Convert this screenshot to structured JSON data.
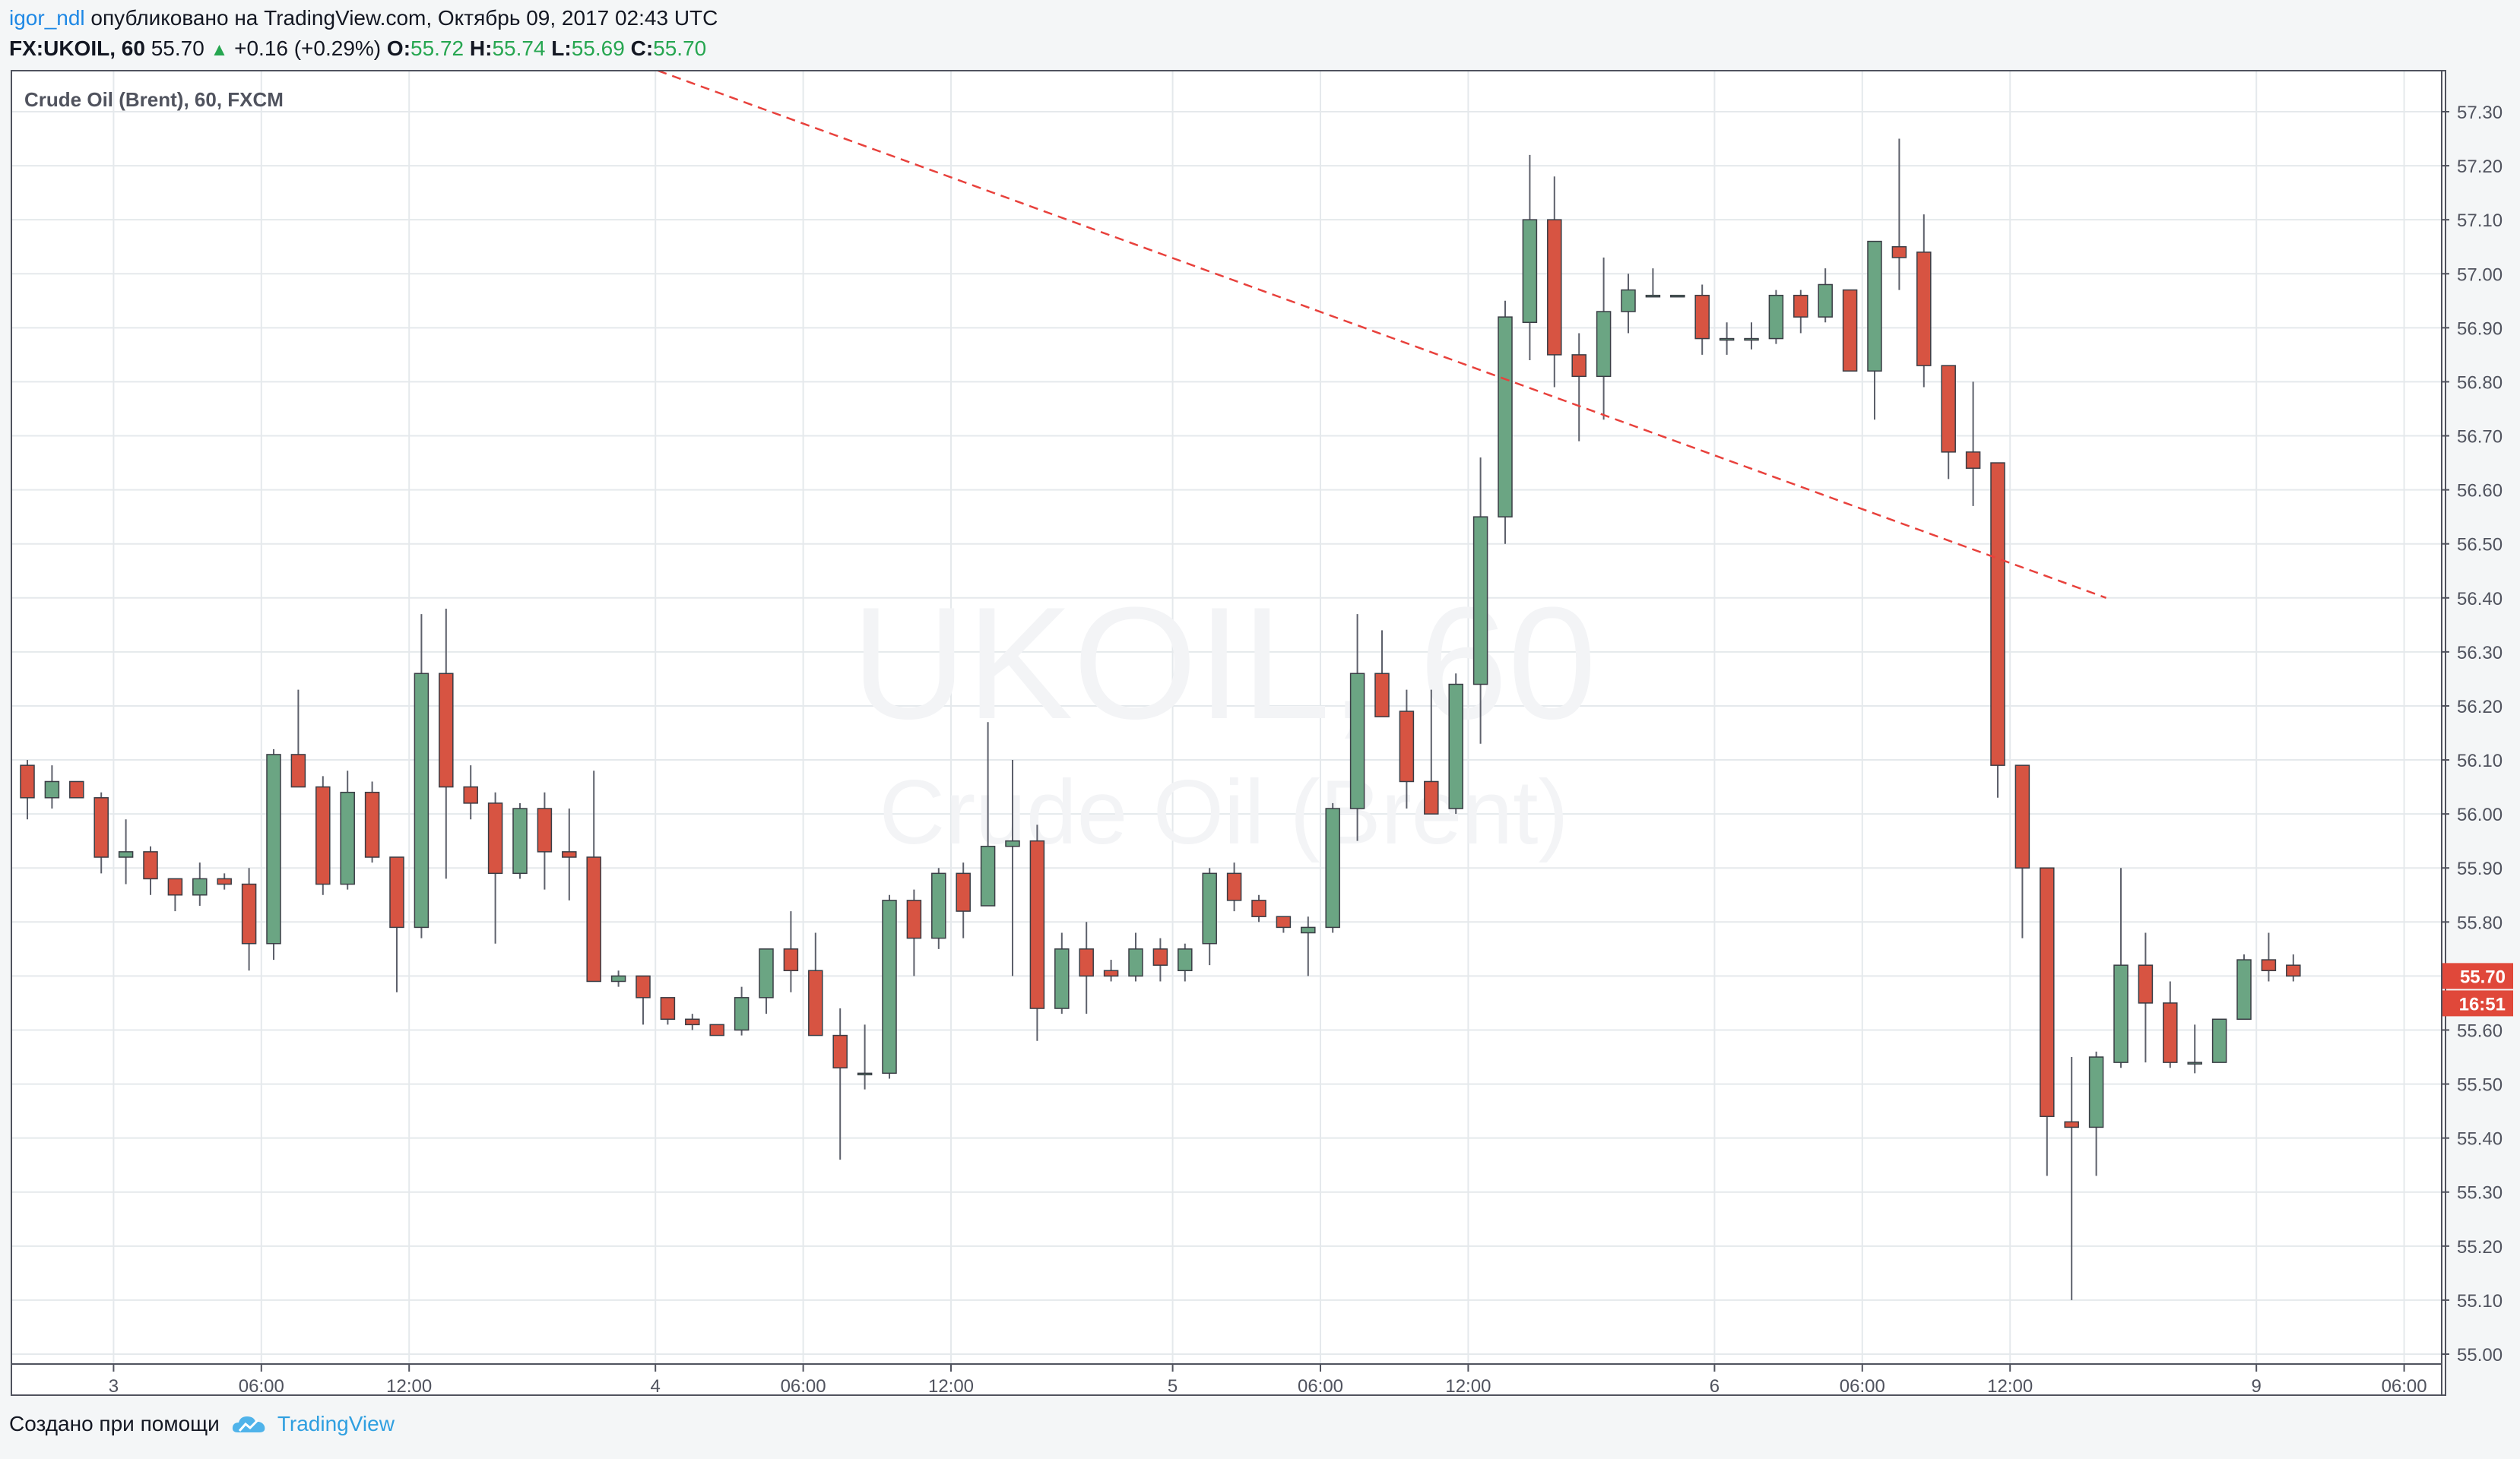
{
  "header": {
    "user": "igor_ndl",
    "published_text": "опубликовано на TradingView.com, Октябрь 09, 2017 02:43 UTC",
    "symbol": "FX:UKOIL, 60",
    "last": "55.70",
    "change": "+0.16 (+0.29%)",
    "o_label": "O:",
    "o_value": "55.72",
    "h_label": "H:",
    "h_value": "55.74",
    "l_label": "L:",
    "l_value": "55.69",
    "c_label": "C:",
    "c_value": "55.70"
  },
  "footer": {
    "created_with": "Создано при помощи",
    "brand": "TradingView"
  },
  "colors": {
    "up": "#6ba583",
    "down": "#d75442",
    "wick": "#5d606b",
    "trendline": "#e8413c",
    "grid": "#e5e9ec",
    "price_tag": "#e0483a"
  },
  "chart_data": {
    "type": "candlestick",
    "title": "Crude Oil (Brent), 60, FXCM",
    "watermark_symbol": "UKOIL, 60",
    "watermark_name": "Crude Oil (Brent)",
    "ylim": [
      55.0,
      57.3
    ],
    "y_ticks": [
      "57.30",
      "57.20",
      "57.10",
      "57.00",
      "56.90",
      "56.80",
      "56.70",
      "56.60",
      "56.50",
      "56.40",
      "56.30",
      "56.20",
      "56.10",
      "56.00",
      "55.90",
      "55.80",
      "55.70",
      "55.60",
      "55.50",
      "55.40",
      "55.30",
      "55.20",
      "55.10",
      "55.00"
    ],
    "x_ticks": [
      {
        "bar": 3.5,
        "label": "3"
      },
      {
        "bar": 9.5,
        "label": "06:00"
      },
      {
        "bar": 15.5,
        "label": "12:00"
      },
      {
        "bar": 25.5,
        "label": "4"
      },
      {
        "bar": 31.5,
        "label": "06:00"
      },
      {
        "bar": 37.5,
        "label": "12:00"
      },
      {
        "bar": 46.5,
        "label": "5"
      },
      {
        "bar": 52.5,
        "label": "06:00"
      },
      {
        "bar": 58.5,
        "label": "12:00"
      },
      {
        "bar": 68.5,
        "label": "6"
      },
      {
        "bar": 74.5,
        "label": "06:00"
      },
      {
        "bar": 80.5,
        "label": "12:00"
      },
      {
        "bar": 90.5,
        "label": "9"
      },
      {
        "bar": 96.5,
        "label": "06:00"
      }
    ],
    "last_price_label": "55.70",
    "countdown_label": "16:51",
    "last_price": 55.7,
    "trendline": {
      "from": {
        "bar": 25.6,
        "price": 57.38
      },
      "to": {
        "bar": 84.4,
        "price": 56.4
      }
    },
    "candles": [
      [
        56.09,
        56.1,
        55.99,
        56.03
      ],
      [
        56.03,
        56.09,
        56.01,
        56.06
      ],
      [
        56.06,
        56.06,
        56.03,
        56.03
      ],
      [
        56.03,
        56.04,
        55.89,
        55.92
      ],
      [
        55.92,
        55.99,
        55.87,
        55.93
      ],
      [
        55.93,
        55.94,
        55.85,
        55.88
      ],
      [
        55.88,
        55.88,
        55.82,
        55.85
      ],
      [
        55.85,
        55.91,
        55.83,
        55.88
      ],
      [
        55.88,
        55.89,
        55.86,
        55.87
      ],
      [
        55.87,
        55.9,
        55.71,
        55.76
      ],
      [
        55.76,
        56.12,
        55.73,
        56.11
      ],
      [
        56.11,
        56.23,
        56.05,
        56.05
      ],
      [
        56.05,
        56.07,
        55.85,
        55.87
      ],
      [
        55.87,
        56.08,
        55.86,
        56.04
      ],
      [
        56.04,
        56.06,
        55.91,
        55.92
      ],
      [
        55.92,
        55.92,
        55.67,
        55.79
      ],
      [
        55.79,
        56.37,
        55.77,
        56.26
      ],
      [
        56.26,
        56.38,
        55.88,
        56.05
      ],
      [
        56.05,
        56.09,
        55.99,
        56.02
      ],
      [
        56.02,
        56.04,
        55.76,
        55.89
      ],
      [
        55.89,
        56.02,
        55.88,
        56.01
      ],
      [
        56.01,
        56.04,
        55.86,
        55.93
      ],
      [
        55.93,
        56.01,
        55.84,
        55.92
      ],
      [
        55.92,
        56.08,
        55.7,
        55.69
      ],
      [
        55.69,
        55.71,
        55.68,
        55.7
      ],
      [
        55.7,
        55.7,
        55.61,
        55.66
      ],
      [
        55.66,
        55.66,
        55.61,
        55.62
      ],
      [
        55.62,
        55.63,
        55.6,
        55.61
      ],
      [
        55.61,
        55.61,
        55.59,
        55.59
      ],
      [
        55.6,
        55.68,
        55.59,
        55.66
      ],
      [
        55.66,
        55.75,
        55.63,
        55.75
      ],
      [
        55.75,
        55.82,
        55.67,
        55.71
      ],
      [
        55.71,
        55.78,
        55.59,
        55.59
      ],
      [
        55.59,
        55.64,
        55.36,
        55.53
      ],
      [
        55.52,
        55.61,
        55.49,
        55.52
      ],
      [
        55.52,
        55.85,
        55.51,
        55.84
      ],
      [
        55.84,
        55.86,
        55.7,
        55.77
      ],
      [
        55.77,
        55.9,
        55.75,
        55.89
      ],
      [
        55.89,
        55.91,
        55.77,
        55.82
      ],
      [
        55.83,
        56.17,
        55.83,
        55.94
      ],
      [
        55.94,
        56.1,
        55.7,
        55.95
      ],
      [
        55.95,
        55.98,
        55.58,
        55.64
      ],
      [
        55.64,
        55.78,
        55.63,
        55.75
      ],
      [
        55.75,
        55.8,
        55.63,
        55.7
      ],
      [
        55.71,
        55.73,
        55.69,
        55.7
      ],
      [
        55.7,
        55.78,
        55.69,
        55.75
      ],
      [
        55.75,
        55.77,
        55.69,
        55.72
      ],
      [
        55.71,
        55.76,
        55.69,
        55.75
      ],
      [
        55.76,
        55.9,
        55.72,
        55.89
      ],
      [
        55.89,
        55.91,
        55.82,
        55.84
      ],
      [
        55.84,
        55.85,
        55.8,
        55.81
      ],
      [
        55.81,
        55.81,
        55.78,
        55.79
      ],
      [
        55.78,
        55.81,
        55.7,
        55.79
      ],
      [
        55.79,
        56.02,
        55.78,
        56.01
      ],
      [
        56.01,
        56.37,
        55.95,
        56.26
      ],
      [
        56.26,
        56.34,
        56.19,
        56.18
      ],
      [
        56.19,
        56.23,
        56.01,
        56.06
      ],
      [
        56.06,
        56.23,
        56.0,
        56.0
      ],
      [
        56.01,
        56.26,
        56.0,
        56.24
      ],
      [
        56.24,
        56.66,
        56.13,
        56.55
      ],
      [
        56.55,
        56.95,
        56.5,
        56.92
      ],
      [
        56.91,
        57.22,
        56.84,
        57.1
      ],
      [
        57.1,
        57.18,
        56.79,
        56.85
      ],
      [
        56.85,
        56.89,
        56.69,
        56.81
      ],
      [
        56.81,
        57.03,
        56.73,
        56.93
      ],
      [
        56.93,
        57.0,
        56.89,
        56.97
      ],
      [
        56.96,
        57.01,
        56.96,
        56.96
      ],
      [
        56.96,
        56.96,
        56.96,
        56.96
      ],
      [
        56.96,
        56.98,
        56.85,
        56.88
      ],
      [
        56.88,
        56.91,
        56.85,
        56.88
      ],
      [
        56.88,
        56.91,
        56.86,
        56.88
      ],
      [
        56.88,
        56.97,
        56.87,
        56.96
      ],
      [
        56.96,
        56.97,
        56.89,
        56.92
      ],
      [
        56.92,
        57.01,
        56.91,
        56.98
      ],
      [
        56.97,
        56.97,
        56.82,
        56.82
      ],
      [
        56.82,
        57.06,
        56.73,
        57.06
      ],
      [
        57.05,
        57.25,
        56.97,
        57.03
      ],
      [
        57.04,
        57.11,
        56.79,
        56.83
      ],
      [
        56.83,
        56.83,
        56.62,
        56.67
      ],
      [
        56.67,
        56.8,
        56.57,
        56.64
      ],
      [
        56.65,
        56.64,
        56.03,
        56.09
      ],
      [
        56.09,
        56.09,
        55.77,
        55.9
      ],
      [
        55.9,
        55.9,
        55.33,
        55.44
      ],
      [
        55.43,
        55.55,
        55.1,
        55.42
      ],
      [
        55.42,
        55.56,
        55.33,
        55.55
      ],
      [
        55.54,
        55.9,
        55.53,
        55.72
      ],
      [
        55.72,
        55.78,
        55.54,
        55.65
      ],
      [
        55.65,
        55.69,
        55.53,
        55.54
      ],
      [
        55.54,
        55.61,
        55.52,
        55.54
      ],
      [
        55.54,
        55.62,
        55.54,
        55.62
      ],
      [
        55.62,
        55.74,
        55.62,
        55.73
      ],
      [
        55.73,
        55.78,
        55.69,
        55.71
      ],
      [
        55.72,
        55.74,
        55.69,
        55.7
      ]
    ]
  }
}
